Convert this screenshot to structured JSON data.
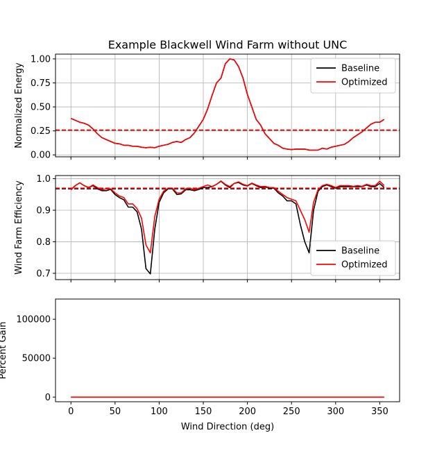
{
  "chart_data": {
    "type": "line",
    "title": "Example Blackwell Wind Farm without UNC",
    "xlabel": "Wind Direction (deg)",
    "xlim": [
      -17.5,
      372.5
    ],
    "xticks": [
      0,
      50,
      100,
      150,
      200,
      250,
      300,
      350
    ],
    "xtick_labels": [
      "0",
      "50",
      "100",
      "150",
      "200",
      "250",
      "300",
      "350"
    ],
    "colors": {
      "baseline": "#000000",
      "optimized": "#ff0000",
      "grid": "#b0b0b0"
    },
    "panels": [
      {
        "ylabel": "Normalized Energy",
        "ylim": [
          -0.02,
          1.05
        ],
        "yticks": [
          0.0,
          0.25,
          0.5,
          0.75,
          1.0
        ],
        "ytick_labels": [
          "0.00",
          "0.25",
          "0.50",
          "0.75",
          "1.00"
        ],
        "grid": true,
        "legend": {
          "placement": "upper-right",
          "entries": [
            "Baseline",
            "Optimized"
          ]
        },
        "hlines": [
          {
            "series": "Baseline",
            "y": 0.258
          },
          {
            "series": "Optimized",
            "y": 0.258
          }
        ],
        "series": [
          {
            "name": "Baseline",
            "x": [
              0,
              5,
              10,
              15,
              20,
              25,
              30,
              35,
              40,
              45,
              50,
              55,
              60,
              65,
              70,
              75,
              80,
              85,
              90,
              95,
              100,
              105,
              110,
              115,
              120,
              125,
              130,
              135,
              140,
              145,
              150,
              155,
              160,
              165,
              170,
              175,
              180,
              185,
              190,
              195,
              200,
              205,
              210,
              215,
              220,
              225,
              230,
              235,
              240,
              245,
              250,
              255,
              260,
              265,
              270,
              275,
              280,
              285,
              290,
              295,
              300,
              305,
              310,
              315,
              320,
              325,
              330,
              335,
              340,
              345,
              350,
              355
            ],
            "values": [
              0.38,
              0.36,
              0.34,
              0.33,
              0.31,
              0.27,
              0.22,
              0.18,
              0.16,
              0.14,
              0.12,
              0.115,
              0.1,
              0.1,
              0.09,
              0.09,
              0.08,
              0.075,
              0.08,
              0.075,
              0.09,
              0.1,
              0.11,
              0.13,
              0.14,
              0.13,
              0.16,
              0.18,
              0.23,
              0.3,
              0.37,
              0.48,
              0.62,
              0.75,
              0.8,
              0.95,
              1.0,
              0.99,
              0.92,
              0.8,
              0.63,
              0.5,
              0.37,
              0.31,
              0.22,
              0.17,
              0.12,
              0.1,
              0.07,
              0.06,
              0.055,
              0.06,
              0.06,
              0.06,
              0.05,
              0.05,
              0.05,
              0.07,
              0.06,
              0.08,
              0.09,
              0.1,
              0.11,
              0.14,
              0.18,
              0.21,
              0.24,
              0.28,
              0.32,
              0.34,
              0.34,
              0.37
            ]
          },
          {
            "name": "Optimized",
            "x": [
              0,
              5,
              10,
              15,
              20,
              25,
              30,
              35,
              40,
              45,
              50,
              55,
              60,
              65,
              70,
              75,
              80,
              85,
              90,
              95,
              100,
              105,
              110,
              115,
              120,
              125,
              130,
              135,
              140,
              145,
              150,
              155,
              160,
              165,
              170,
              175,
              180,
              185,
              190,
              195,
              200,
              205,
              210,
              215,
              220,
              225,
              230,
              235,
              240,
              245,
              250,
              255,
              260,
              265,
              270,
              275,
              280,
              285,
              290,
              295,
              300,
              305,
              310,
              315,
              320,
              325,
              330,
              335,
              340,
              345,
              350,
              355
            ],
            "values": [
              0.38,
              0.36,
              0.34,
              0.33,
              0.31,
              0.27,
              0.22,
              0.18,
              0.16,
              0.14,
              0.12,
              0.115,
              0.1,
              0.1,
              0.09,
              0.09,
              0.08,
              0.075,
              0.08,
              0.075,
              0.09,
              0.1,
              0.11,
              0.13,
              0.14,
              0.13,
              0.16,
              0.18,
              0.23,
              0.3,
              0.37,
              0.48,
              0.62,
              0.75,
              0.8,
              0.95,
              1.0,
              0.99,
              0.92,
              0.8,
              0.63,
              0.5,
              0.37,
              0.31,
              0.22,
              0.17,
              0.12,
              0.1,
              0.07,
              0.06,
              0.055,
              0.06,
              0.06,
              0.06,
              0.05,
              0.05,
              0.05,
              0.07,
              0.06,
              0.08,
              0.09,
              0.1,
              0.11,
              0.14,
              0.18,
              0.21,
              0.24,
              0.28,
              0.32,
              0.34,
              0.34,
              0.37
            ]
          }
        ]
      },
      {
        "ylabel": "Wind Farm Efficiency",
        "ylim": [
          0.68,
          1.01
        ],
        "yticks": [
          0.7,
          0.8,
          0.9,
          1.0
        ],
        "ytick_labels": [
          "0.7",
          "0.8",
          "0.9",
          "1.0"
        ],
        "grid": true,
        "legend": {
          "placement": "lower-right",
          "entries": [
            "Baseline",
            "Optimized"
          ]
        },
        "hlines": [
          {
            "series": "Baseline",
            "y": 0.968
          },
          {
            "series": "Optimized",
            "y": 0.97
          }
        ],
        "series": [
          {
            "name": "Baseline",
            "x": [
              0,
              5,
              10,
              15,
              20,
              25,
              30,
              35,
              40,
              45,
              50,
              55,
              60,
              65,
              70,
              75,
              80,
              85,
              90,
              95,
              100,
              105,
              110,
              115,
              120,
              125,
              130,
              135,
              140,
              145,
              150,
              155,
              160,
              165,
              170,
              175,
              180,
              185,
              190,
              195,
              200,
              205,
              210,
              215,
              220,
              225,
              230,
              235,
              240,
              245,
              250,
              255,
              260,
              265,
              270,
              275,
              280,
              285,
              290,
              295,
              300,
              305,
              310,
              315,
              320,
              325,
              330,
              335,
              340,
              345,
              350,
              355
            ],
            "values": [
              0.965,
              0.978,
              0.987,
              0.978,
              0.972,
              0.978,
              0.968,
              0.962,
              0.962,
              0.966,
              0.95,
              0.94,
              0.933,
              0.91,
              0.91,
              0.895,
              0.84,
              0.715,
              0.698,
              0.84,
              0.925,
              0.955,
              0.968,
              0.968,
              0.95,
              0.952,
              0.965,
              0.965,
              0.962,
              0.966,
              0.972,
              0.972,
              0.975,
              0.982,
              0.992,
              0.98,
              0.972,
              0.985,
              0.988,
              0.98,
              0.977,
              0.985,
              0.978,
              0.972,
              0.974,
              0.97,
              0.97,
              0.955,
              0.945,
              0.93,
              0.93,
              0.92,
              0.855,
              0.8,
              0.765,
              0.9,
              0.96,
              0.975,
              0.98,
              0.975,
              0.97,
              0.975,
              0.975,
              0.975,
              0.975,
              0.975,
              0.975,
              0.98,
              0.975,
              0.975,
              0.985,
              0.972
            ]
          },
          {
            "name": "Optimized",
            "x": [
              0,
              5,
              10,
              15,
              20,
              25,
              30,
              35,
              40,
              45,
              50,
              55,
              60,
              65,
              70,
              75,
              80,
              85,
              90,
              95,
              100,
              105,
              110,
              115,
              120,
              125,
              130,
              135,
              140,
              145,
              150,
              155,
              160,
              165,
              170,
              175,
              180,
              185,
              190,
              195,
              200,
              205,
              210,
              215,
              220,
              225,
              230,
              235,
              240,
              245,
              250,
              255,
              260,
              265,
              270,
              275,
              280,
              285,
              290,
              295,
              300,
              305,
              310,
              315,
              320,
              325,
              330,
              335,
              340,
              345,
              350,
              355
            ],
            "values": [
              0.965,
              0.978,
              0.987,
              0.978,
              0.972,
              0.98,
              0.972,
              0.965,
              0.968,
              0.968,
              0.955,
              0.945,
              0.94,
              0.92,
              0.92,
              0.905,
              0.875,
              0.79,
              0.765,
              0.88,
              0.935,
              0.96,
              0.97,
              0.97,
              0.955,
              0.955,
              0.968,
              0.97,
              0.965,
              0.97,
              0.975,
              0.98,
              0.975,
              0.982,
              0.993,
              0.982,
              0.975,
              0.985,
              0.99,
              0.982,
              0.978,
              0.986,
              0.98,
              0.975,
              0.976,
              0.972,
              0.972,
              0.96,
              0.95,
              0.94,
              0.935,
              0.93,
              0.9,
              0.87,
              0.83,
              0.925,
              0.965,
              0.978,
              0.982,
              0.978,
              0.972,
              0.978,
              0.978,
              0.978,
              0.976,
              0.978,
              0.976,
              0.982,
              0.978,
              0.978,
              0.992,
              0.978
            ]
          }
        ]
      },
      {
        "ylabel": "Percent Gain",
        "ylim": [
          -6000,
          126000
        ],
        "yticks": [
          0,
          50000,
          100000
        ],
        "ytick_labels": [
          "0",
          "50000",
          "100000"
        ],
        "grid": false,
        "series": [
          {
            "name": "Baseline",
            "x": [
              0,
              355
            ],
            "values": [
              0,
              0
            ]
          },
          {
            "name": "Optimized",
            "x": [
              0,
              355
            ],
            "values": [
              0,
              0
            ]
          }
        ]
      }
    ]
  }
}
